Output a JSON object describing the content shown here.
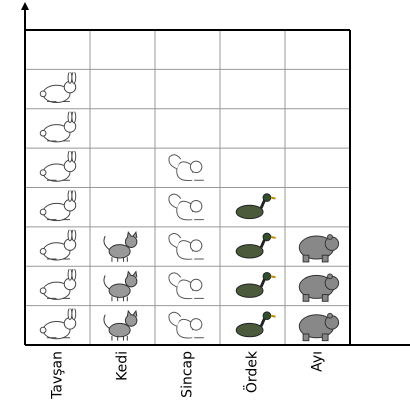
{
  "chart_data": {
    "type": "pictograph",
    "categories": [
      "Tavşan",
      "Kedi",
      "Sincap",
      "Ördek",
      "Ayı"
    ],
    "values": [
      7,
      3,
      5,
      4,
      3
    ],
    "ylim": [
      0,
      8
    ],
    "grid": true
  }
}
